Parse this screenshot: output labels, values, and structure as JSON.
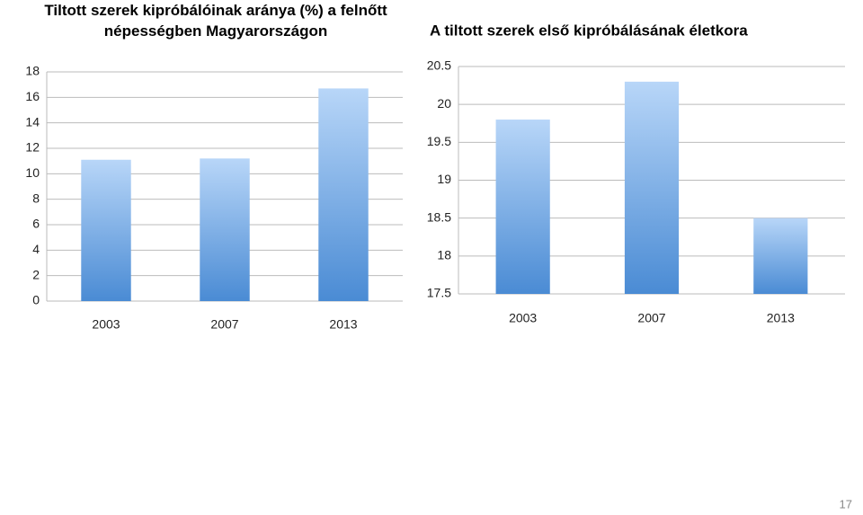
{
  "chart_data": [
    {
      "type": "bar",
      "title": "Tiltott szerek kipróbálóinak aránya (%) a felnőtt népességben Magyarországon",
      "categories": [
        "2003",
        "2007",
        "2013"
      ],
      "values": [
        11.1,
        11.2,
        16.7
      ],
      "color": "#4a8bd4",
      "ylim": [
        0,
        18
      ],
      "yticks": [
        0,
        2,
        4,
        6,
        8,
        10,
        12,
        14,
        16,
        18
      ],
      "grid": true
    },
    {
      "type": "bar",
      "title": "A tiltott szerek első kipróbálásának életkora",
      "categories": [
        "2003",
        "2007",
        "2013"
      ],
      "values": [
        19.8,
        20.3,
        18.5
      ],
      "color": "#4a8bd4",
      "ylim": [
        17.5,
        20.5
      ],
      "yticks": [
        17.5,
        18,
        18.5,
        19,
        19.5,
        20,
        20.5
      ],
      "grid": true
    }
  ],
  "slide_number": 17
}
